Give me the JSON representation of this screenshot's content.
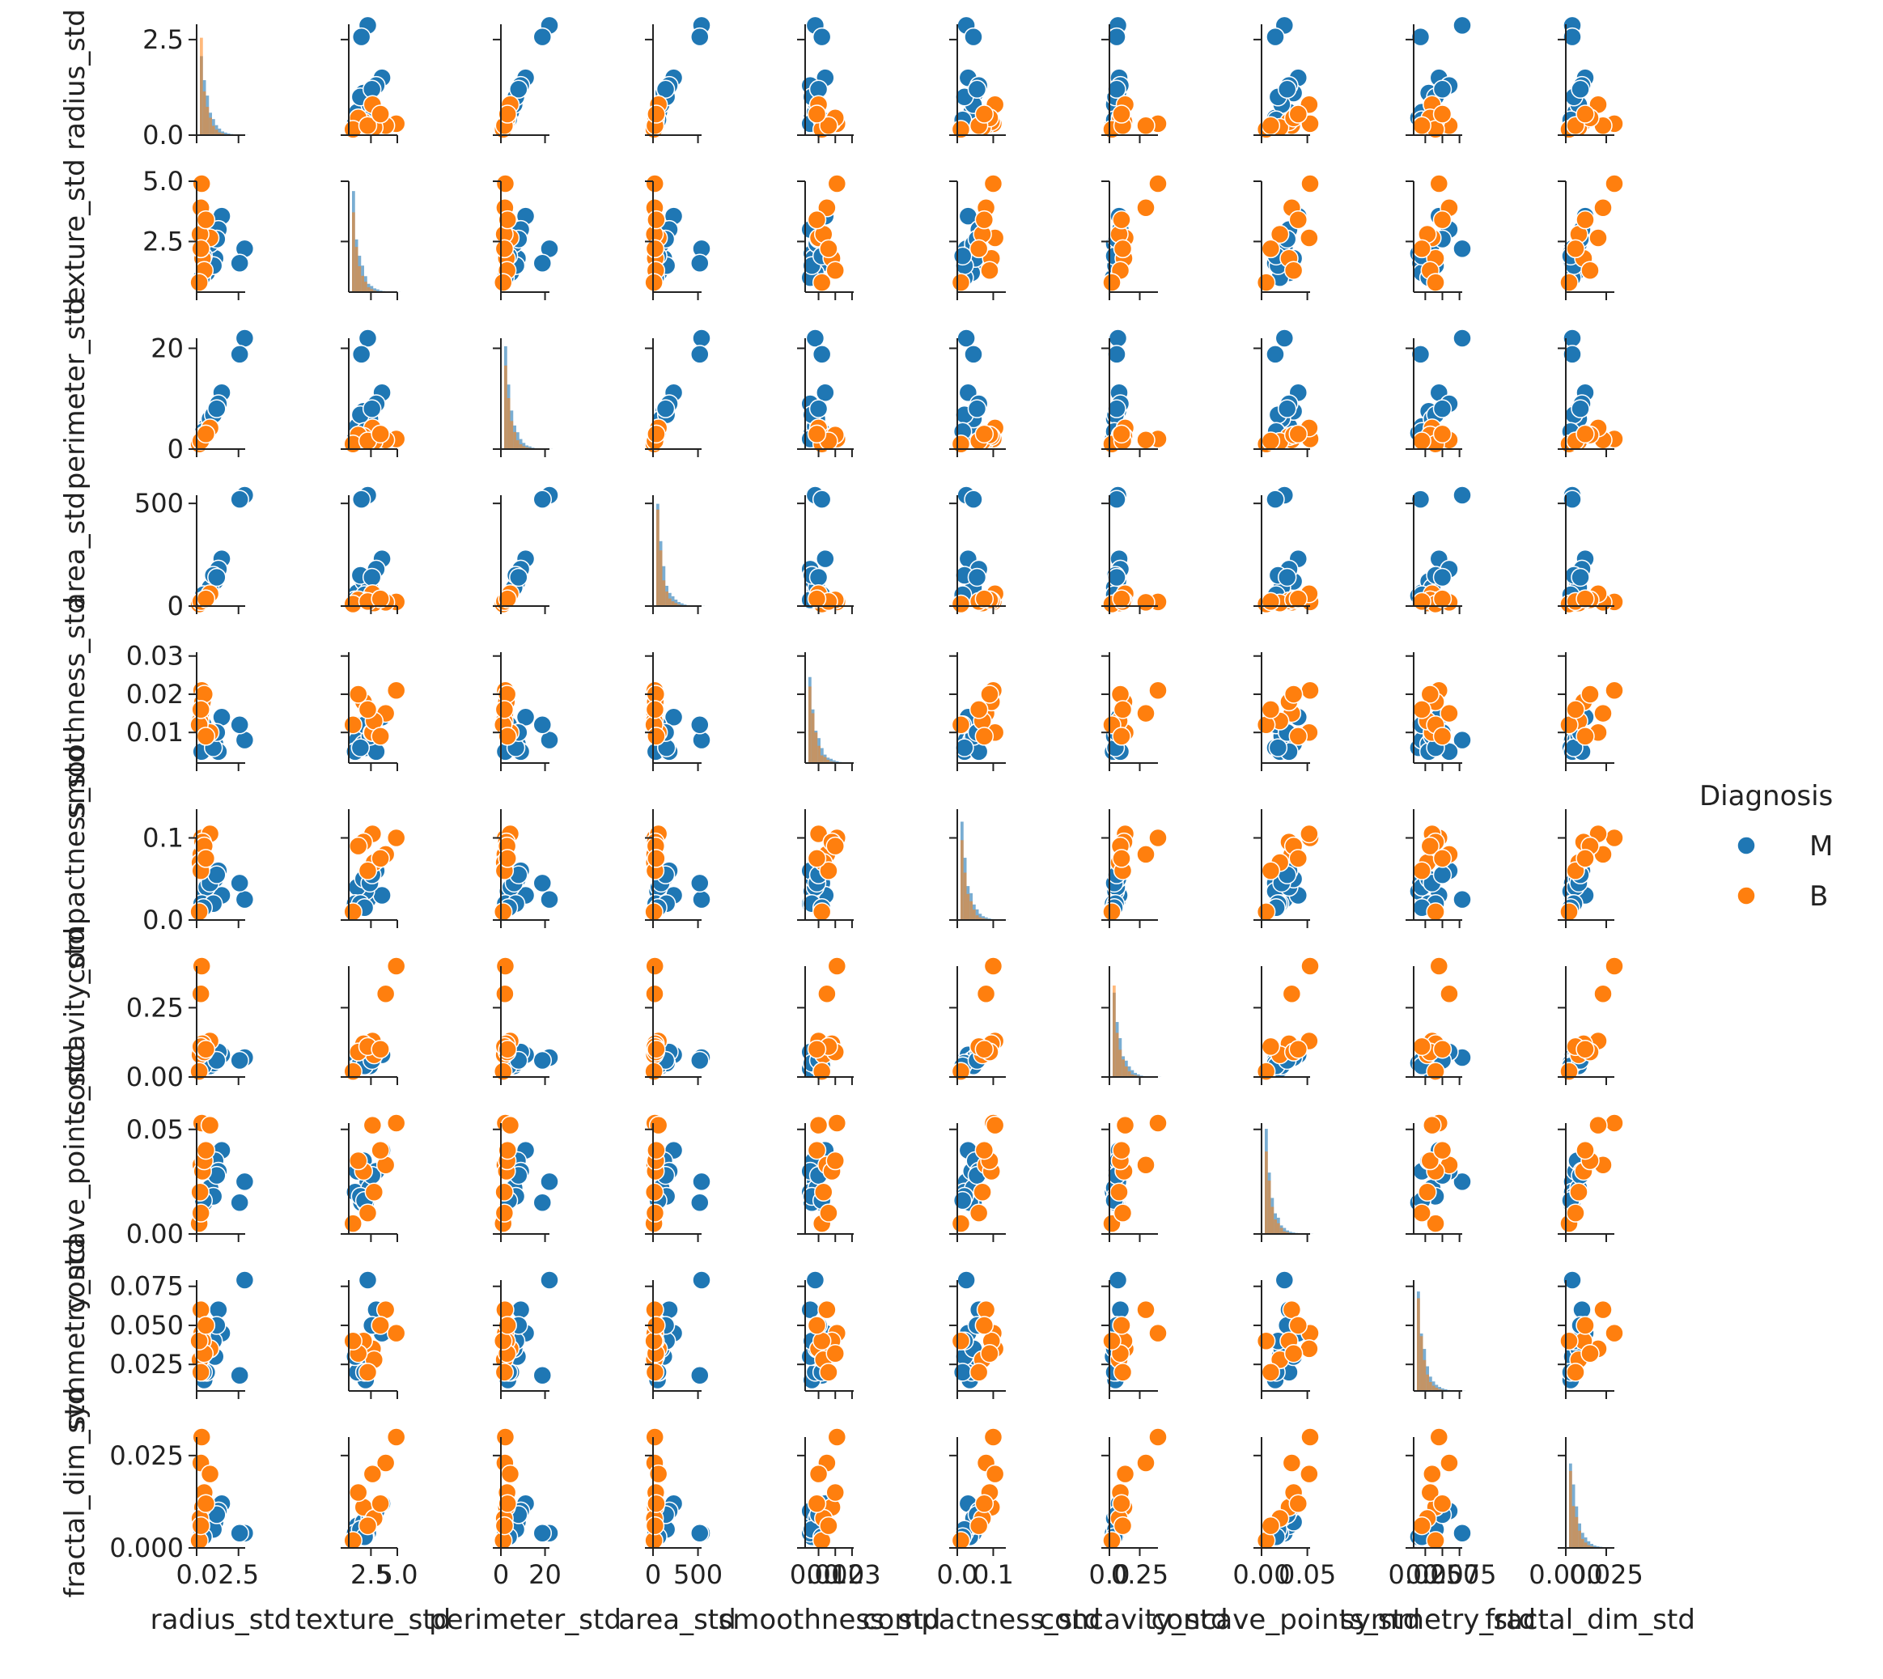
{
  "chart_data": {
    "type": "scatter",
    "kind": "pairplot",
    "diag_kind": "hist",
    "variables": [
      "radius_std",
      "texture_std",
      "perimeter_std",
      "area_std",
      "smoothness_std",
      "compactness_std",
      "concavity_std",
      "concave_points_std",
      "symmetry_std",
      "fractal_dim_std"
    ],
    "ranges": [
      [
        0,
        2.9
      ],
      [
        0.4,
        5.0
      ],
      [
        0,
        22
      ],
      [
        0,
        540
      ],
      [
        0.002,
        0.031
      ],
      [
        0,
        0.135
      ],
      [
        0,
        0.4
      ],
      [
        0,
        0.053
      ],
      [
        0.008,
        0.079
      ],
      [
        0,
        0.03
      ]
    ],
    "y_tick_values": [
      [
        0.0,
        2.5
      ],
      [
        2.5,
        5.0
      ],
      [
        0,
        20
      ],
      [
        0,
        500
      ],
      [
        0.01,
        0.02,
        0.03
      ],
      [
        0.0,
        0.1
      ],
      [
        0.0,
        0.25
      ],
      [
        0.0,
        0.05
      ],
      [
        0.025,
        0.05,
        0.075
      ],
      [
        0.0,
        0.025
      ]
    ],
    "y_tick_labels": [
      [
        "0.0",
        "2.5"
      ],
      [
        "2.5",
        "5.0"
      ],
      [
        "0",
        "20"
      ],
      [
        "0",
        "500"
      ],
      [
        "0.01",
        "0.02",
        "0.03"
      ],
      [
        "0.0",
        "0.1"
      ],
      [
        "0.00",
        "0.25"
      ],
      [
        "0.00",
        "0.05"
      ],
      [
        "0.025",
        "0.050",
        "0.075"
      ],
      [
        "0.000",
        "0.025"
      ]
    ],
    "x_tick_values": [
      [
        0.0,
        2.5
      ],
      [
        2.5,
        5.0
      ],
      [
        0,
        20
      ],
      [
        0,
        500
      ],
      [
        0.01,
        0.02,
        0.03
      ],
      [
        0.0,
        0.1
      ],
      [
        0.0,
        0.25
      ],
      [
        0.0,
        0.05
      ],
      [
        0.025,
        0.05,
        0.075
      ],
      [
        0.0,
        0.025
      ]
    ],
    "x_tick_labels": [
      [
        "0.0",
        "2.5"
      ],
      [
        "2.5",
        "5.0"
      ],
      [
        "0",
        "20"
      ],
      [
        "0",
        "500"
      ],
      [
        "0.01",
        "0.02",
        "0.03"
      ],
      [
        "0.0",
        "0.1"
      ],
      [
        "0.0",
        "0.25"
      ],
      [
        "0.00",
        "0.05"
      ],
      [
        "0.025",
        "0.050",
        "0.075"
      ],
      [
        "0.000",
        "0.025"
      ]
    ],
    "legend": {
      "title": "Diagnosis",
      "placement": "right"
    },
    "series": [
      {
        "name": "M",
        "color": "#1f77b4",
        "points": [
          [
            2.87,
            2.2,
            22.0,
            540,
            0.008,
            0.025,
            0.07,
            0.025,
            0.079,
            0.004
          ],
          [
            2.57,
            1.6,
            18.8,
            520,
            0.012,
            0.045,
            0.06,
            0.015,
            0.018,
            0.004
          ],
          [
            1.5,
            3.55,
            11.2,
            230,
            0.014,
            0.03,
            0.08,
            0.04,
            0.045,
            0.012
          ],
          [
            0.45,
            2.0,
            3.2,
            50,
            0.006,
            0.035,
            0.05,
            0.015,
            0.015,
            0.003
          ],
          [
            0.6,
            1.2,
            4.5,
            65,
            0.008,
            0.04,
            0.06,
            0.03,
            0.02,
            0.006
          ],
          [
            1.1,
            1.8,
            7.5,
            120,
            0.007,
            0.05,
            0.07,
            0.035,
            0.03,
            0.007
          ],
          [
            0.3,
            1.0,
            2.0,
            30,
            0.005,
            0.02,
            0.03,
            0.02,
            0.03,
            0.004
          ],
          [
            1.3,
            3.0,
            9.0,
            180,
            0.005,
            0.06,
            0.09,
            0.03,
            0.06,
            0.01
          ],
          [
            0.8,
            2.4,
            6.0,
            90,
            0.009,
            0.045,
            0.04,
            0.022,
            0.035,
            0.008
          ],
          [
            1.0,
            1.5,
            6.8,
            150,
            0.006,
            0.02,
            0.05,
            0.018,
            0.04,
            0.005
          ],
          [
            0.4,
            1.9,
            3.5,
            55,
            0.012,
            0.015,
            0.04,
            0.016,
            0.02,
            0.003
          ],
          [
            1.2,
            2.6,
            8.0,
            140,
            0.01,
            0.055,
            0.06,
            0.028,
            0.05,
            0.009
          ]
        ]
      },
      {
        "name": "B",
        "color": "#ff7f0e",
        "points": [
          [
            0.3,
            4.9,
            2.0,
            20,
            0.021,
            0.1,
            0.4,
            0.053,
            0.045,
            0.03
          ],
          [
            0.25,
            3.9,
            1.8,
            18,
            0.015,
            0.08,
            0.3,
            0.033,
            0.06,
            0.023
          ],
          [
            0.8,
            2.65,
            4.2,
            60,
            0.01,
            0.105,
            0.13,
            0.052,
            0.035,
            0.02
          ],
          [
            0.35,
            1.8,
            2.5,
            25,
            0.018,
            0.095,
            0.12,
            0.03,
            0.04,
            0.011
          ],
          [
            0.2,
            2.8,
            1.5,
            15,
            0.013,
            0.07,
            0.08,
            0.02,
            0.028,
            0.008
          ],
          [
            0.45,
            1.3,
            2.8,
            30,
            0.02,
            0.09,
            0.09,
            0.035,
            0.032,
            0.015
          ],
          [
            0.15,
            0.8,
            1.0,
            10,
            0.012,
            0.01,
            0.02,
            0.005,
            0.04,
            0.002
          ],
          [
            0.25,
            2.2,
            1.6,
            22,
            0.016,
            0.06,
            0.11,
            0.01,
            0.02,
            0.006
          ],
          [
            0.55,
            3.4,
            3.0,
            35,
            0.009,
            0.075,
            0.1,
            0.04,
            0.05,
            0.012
          ]
        ]
      }
    ]
  }
}
